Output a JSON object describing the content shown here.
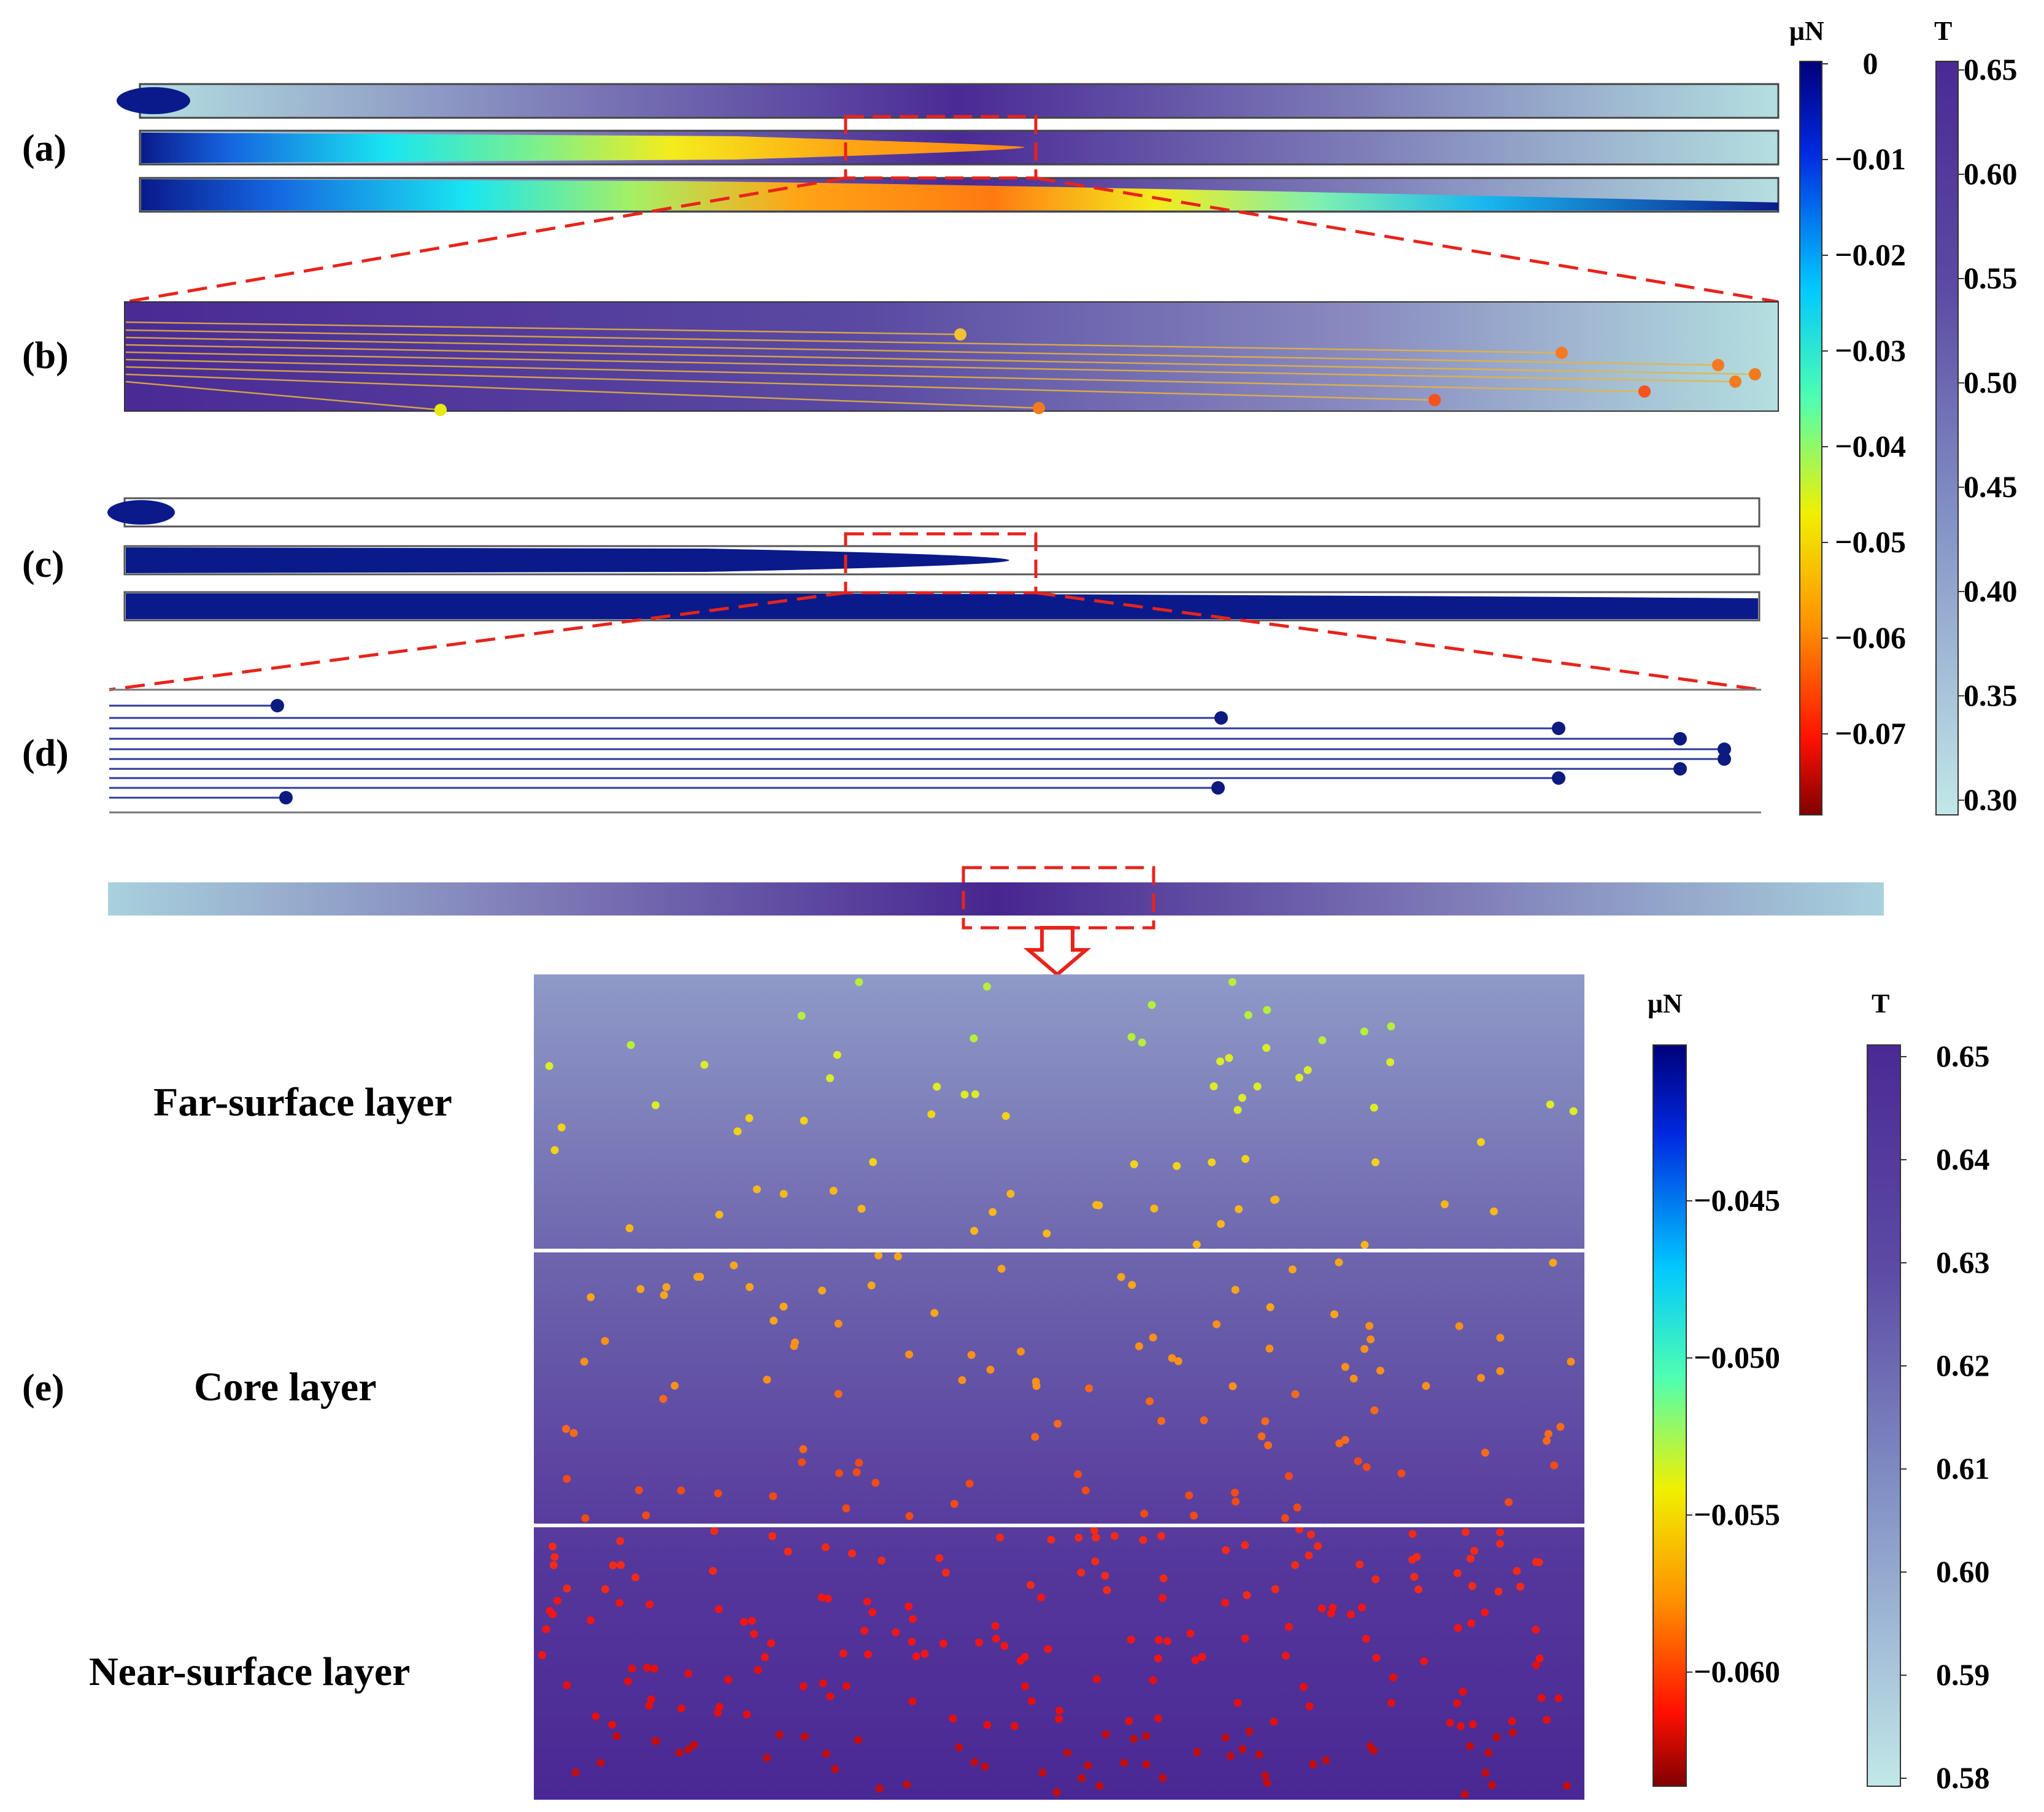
{
  "panels": {
    "a": "(a)",
    "b": "(b)",
    "c": "(c)",
    "d": "(d)",
    "e": "(e)"
  },
  "layers": {
    "far": "Far-surface layer",
    "core": "Core layer",
    "near": "Near-surface layer"
  },
  "colorbars": {
    "top_mu": {
      "title": "μN",
      "ticks": [
        "0",
        "−0.01",
        "−0.02",
        "−0.03",
        "−0.04",
        "−0.05",
        "−0.06",
        "−0.07"
      ]
    },
    "top_T": {
      "title": "T",
      "ticks": [
        "0.65",
        "0.60",
        "0.55",
        "0.50",
        "0.45",
        "0.40",
        "0.35",
        "0.30"
      ]
    },
    "bottom_mu": {
      "title": "μN",
      "ticks": [
        "−0.045",
        "−0.050",
        "−0.055",
        "−0.060"
      ]
    },
    "bottom_T": {
      "title": "T",
      "ticks": [
        "0.65",
        "0.64",
        "0.63",
        "0.62",
        "0.61",
        "0.60",
        "0.59",
        "0.58"
      ]
    }
  },
  "colors": {
    "zoom_box": "#e8231b",
    "trajectory_dark": "#0d1a80",
    "temperature_high": "#4a2a95",
    "temperature_low": "#b4dfe0",
    "layer_divider": "#ffffff"
  }
}
